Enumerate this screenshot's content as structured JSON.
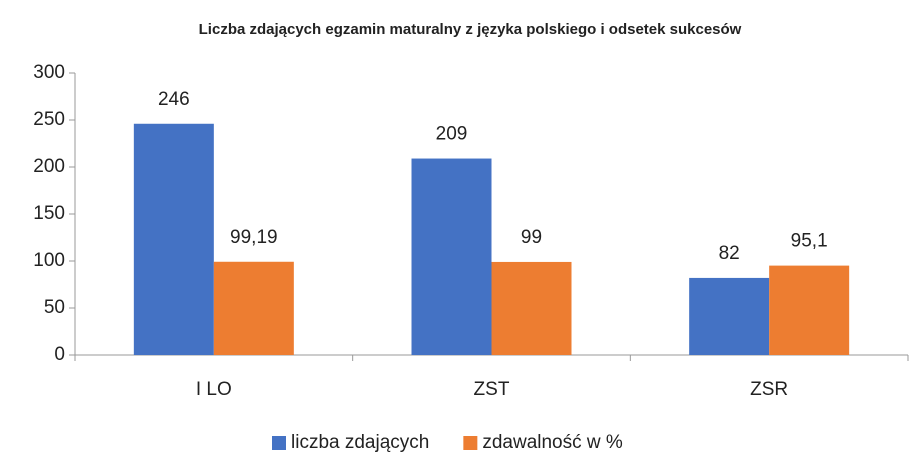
{
  "chart_data": {
    "type": "bar",
    "title": "Liczba zdających egzamin maturalny z języka polskiego i odsetek sukcesów",
    "categories": [
      "I LO",
      "ZST",
      "ZSR"
    ],
    "series": [
      {
        "name": "liczba zdających",
        "color": "#4472c4",
        "values": [
          246,
          209,
          82
        ]
      },
      {
        "name": "zdawalność w %",
        "color": "#ed7d31",
        "values": [
          99.19,
          99,
          95.1
        ],
        "value_labels": [
          "99,19",
          "99",
          "95,1"
        ]
      }
    ],
    "ylim": [
      0,
      300
    ],
    "yticks": [
      0,
      50,
      100,
      150,
      200,
      250,
      300
    ],
    "grid": false,
    "legend": "bottom"
  }
}
